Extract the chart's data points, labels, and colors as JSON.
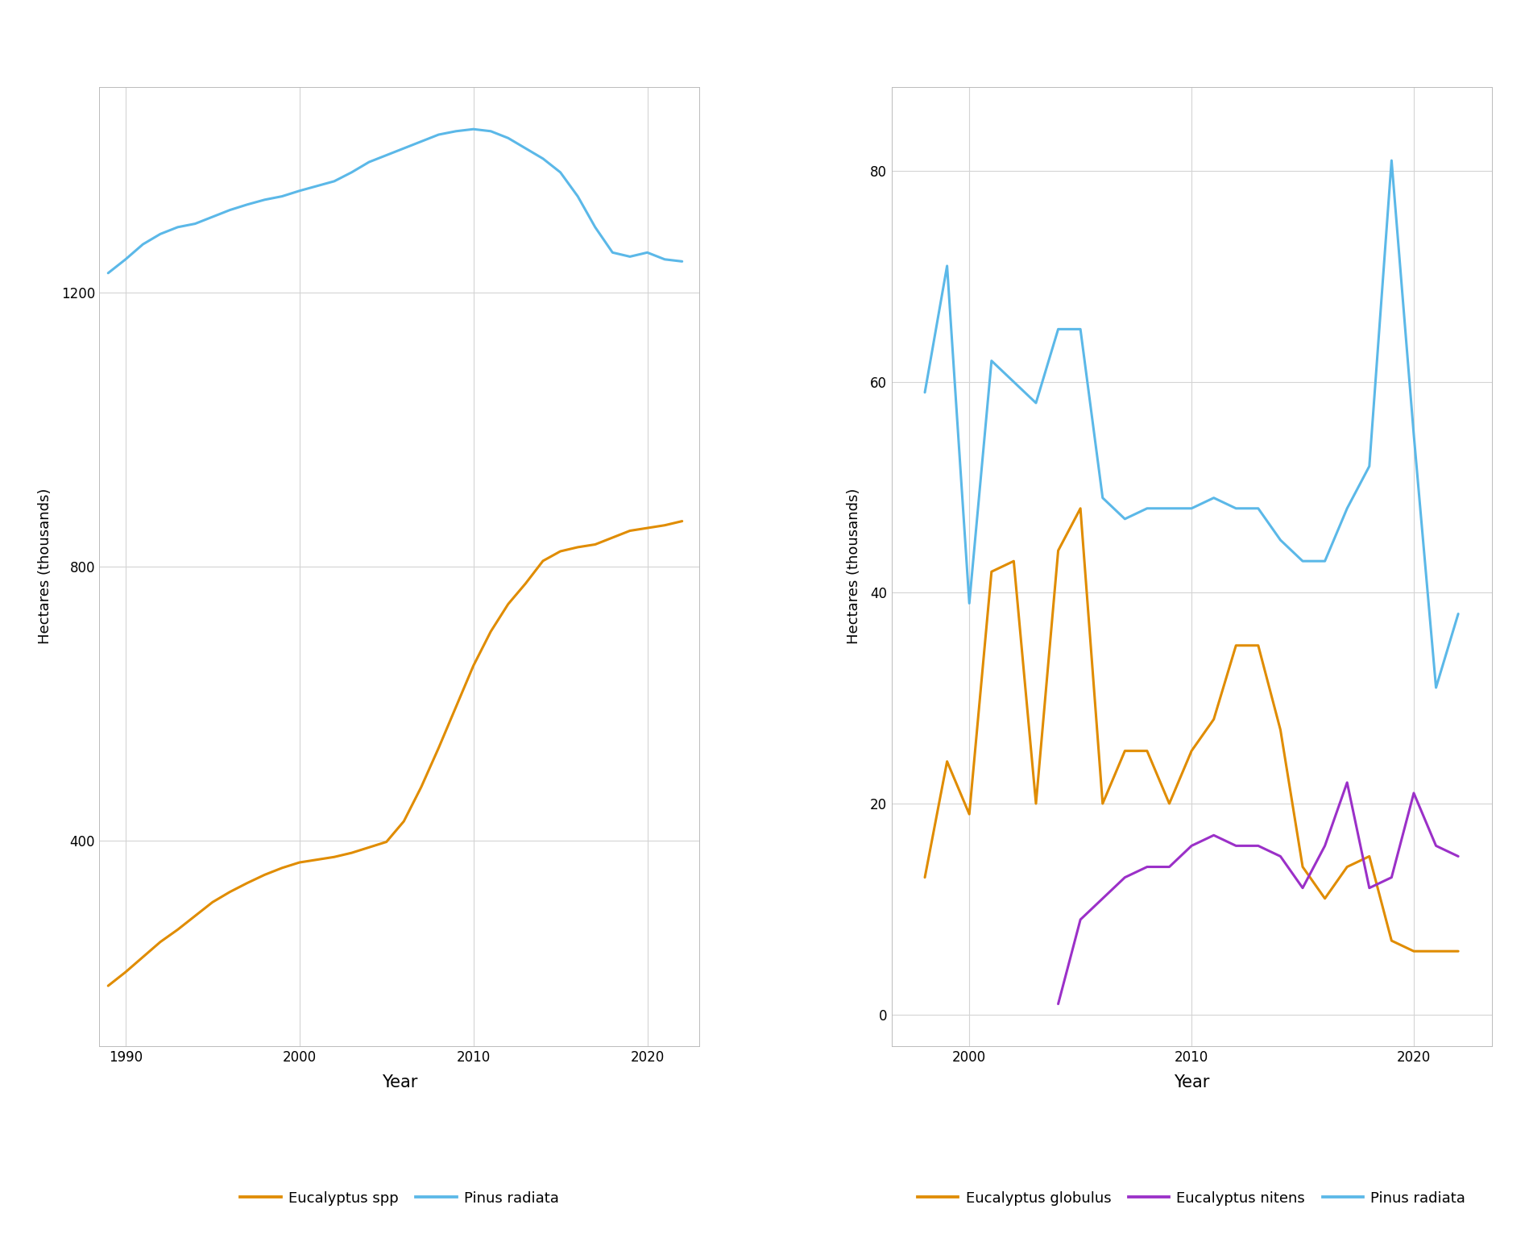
{
  "left_years": [
    1989,
    1990,
    1991,
    1992,
    1993,
    1994,
    1995,
    1996,
    1997,
    1998,
    1999,
    2000,
    2001,
    2002,
    2003,
    2004,
    2005,
    2006,
    2007,
    2008,
    2009,
    2010,
    2011,
    2012,
    2013,
    2014,
    2015,
    2016,
    2017,
    2018,
    2019,
    2020,
    2021,
    2022
  ],
  "pinus_total": [
    1228,
    1248,
    1270,
    1285,
    1295,
    1300,
    1310,
    1320,
    1328,
    1335,
    1340,
    1348,
    1355,
    1362,
    1375,
    1390,
    1400,
    1410,
    1420,
    1430,
    1435,
    1438,
    1435,
    1425,
    1410,
    1395,
    1375,
    1340,
    1295,
    1258,
    1252,
    1258,
    1248,
    1245
  ],
  "eucalyptus_total": [
    188,
    208,
    230,
    252,
    270,
    290,
    310,
    325,
    338,
    350,
    360,
    368,
    372,
    376,
    382,
    390,
    398,
    428,
    478,
    535,
    595,
    655,
    705,
    745,
    775,
    808,
    822,
    828,
    832,
    842,
    852,
    856,
    860,
    866
  ],
  "right_years": [
    1998,
    1999,
    2000,
    2001,
    2002,
    2003,
    2004,
    2005,
    2006,
    2007,
    2008,
    2009,
    2010,
    2011,
    2012,
    2013,
    2014,
    2015,
    2016,
    2017,
    2018,
    2019,
    2020,
    2021,
    2022
  ],
  "pinus_annual": [
    59,
    71,
    39,
    62,
    60,
    58,
    65,
    65,
    49,
    47,
    48,
    48,
    48,
    49,
    48,
    48,
    45,
    43,
    43,
    48,
    52,
    81,
    55,
    31,
    38
  ],
  "globulus_annual": [
    13,
    24,
    19,
    42,
    43,
    20,
    44,
    48,
    20,
    25,
    25,
    20,
    25,
    28,
    35,
    35,
    27,
    14,
    11,
    14,
    15,
    7,
    6,
    6,
    6
  ],
  "nitens_annual": [
    null,
    null,
    null,
    null,
    null,
    null,
    1,
    9,
    11,
    13,
    14,
    14,
    16,
    17,
    16,
    16,
    15,
    12,
    16,
    22,
    12,
    13,
    21,
    16,
    15
  ],
  "color_pinus": "#5BB8E8",
  "color_eucalyptus_spp": "#E08C00",
  "color_globulus": "#E08C00",
  "color_nitens": "#9B30C8",
  "background_color": "#FFFFFF",
  "grid_color": "#D4D4D4",
  "left_ylabel": "Hectares (thousands)",
  "right_ylabel": "Hectares (thousands)",
  "xlabel": "Year",
  "left_yticks": [
    400,
    800,
    1200
  ],
  "right_yticks": [
    0,
    20,
    40,
    60,
    80
  ],
  "left_xticks": [
    1990,
    2000,
    2010,
    2020
  ],
  "right_xticks": [
    2000,
    2010,
    2020
  ],
  "line_width": 2.2
}
